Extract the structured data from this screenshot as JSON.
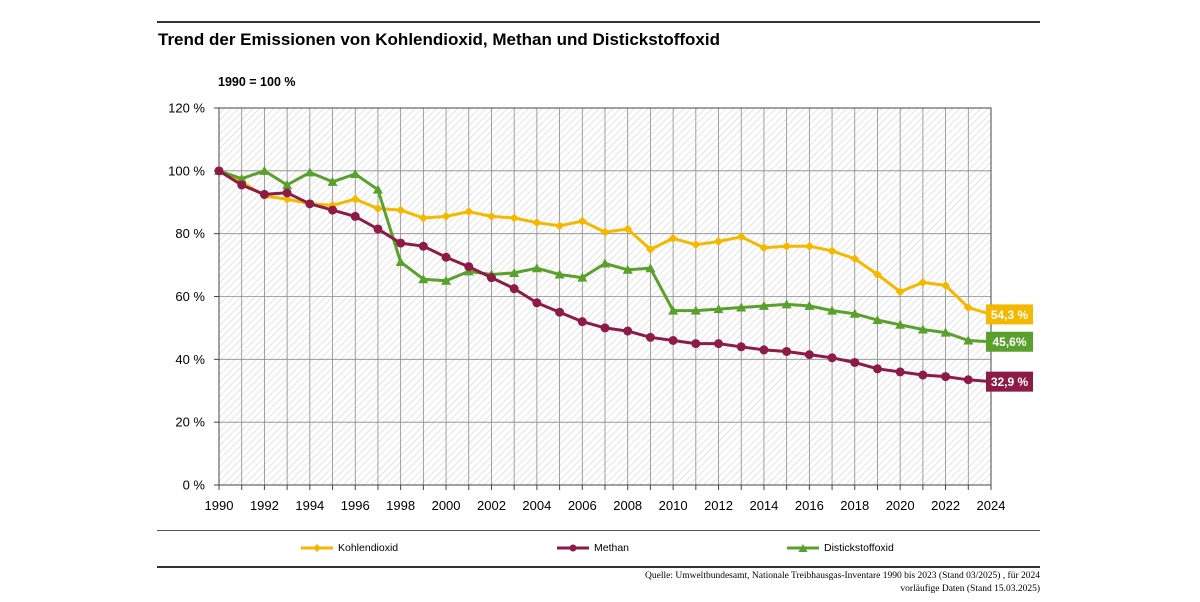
{
  "title": "Trend der Emissionen von Kohlendioxid, Methan und Distickstoffoxid",
  "chart_data": {
    "type": "line",
    "title": "Trend der Emissionen von Kohlendioxid, Methan und Distickstoffoxid",
    "unit_label": "1990 = 100 %",
    "x": [
      1990,
      1991,
      1992,
      1993,
      1994,
      1995,
      1996,
      1997,
      1998,
      1999,
      2000,
      2001,
      2002,
      2003,
      2004,
      2005,
      2006,
      2007,
      2008,
      2009,
      2010,
      2011,
      2012,
      2013,
      2014,
      2015,
      2016,
      2017,
      2018,
      2019,
      2020,
      2021,
      2022,
      2023,
      2024
    ],
    "x_tick_labels": [
      "1990",
      "1992",
      "1994",
      "1996",
      "1998",
      "2000",
      "2002",
      "2004",
      "2006",
      "2008",
      "2010",
      "2012",
      "2014",
      "2016",
      "2018",
      "2020",
      "2022",
      "2024"
    ],
    "ylim": [
      0,
      120
    ],
    "y_tick_labels": [
      "0 %",
      "20 %",
      "40 %",
      "60 %",
      "80 %",
      "100 %",
      "120 %"
    ],
    "grid": true,
    "legend_position": "bottom",
    "series": [
      {
        "name": "Kohlendioxid",
        "color": "#f5b800",
        "marker": "diamond",
        "values": [
          100,
          96.5,
          92,
          91,
          89.5,
          89,
          91,
          88,
          87.5,
          85,
          85.5,
          87,
          85.5,
          85,
          83.5,
          82.5,
          84,
          80.5,
          81.5,
          75,
          78.5,
          76.5,
          77.5,
          79,
          75.5,
          76,
          76,
          74.5,
          72,
          67,
          61.5,
          64.5,
          63.5,
          56.5,
          54.3
        ],
        "end_label": "54,3 %"
      },
      {
        "name": "Methan",
        "color": "#8c1b46",
        "marker": "circle",
        "values": [
          100,
          95.5,
          92.5,
          93,
          89.5,
          87.5,
          85.5,
          81.5,
          77,
          76,
          72.5,
          69.5,
          66,
          62.5,
          58,
          55,
          52,
          50,
          49,
          47,
          46,
          45,
          45,
          44,
          43,
          42.5,
          41.5,
          40.5,
          39,
          37,
          36,
          35,
          34.5,
          33.5,
          32.9
        ],
        "end_label": "32,9 %"
      },
      {
        "name": "Distickstoffoxid",
        "color": "#5aa02c",
        "marker": "triangle",
        "values": [
          100,
          97.5,
          100,
          95.5,
          99.5,
          96.5,
          99,
          94,
          71,
          65.5,
          65,
          68,
          67,
          67.5,
          69,
          67,
          66,
          70.5,
          68.5,
          69,
          55.5,
          55.5,
          56,
          56.5,
          57,
          57.5,
          57,
          55.5,
          54.5,
          52.5,
          51,
          49.5,
          48.5,
          46,
          45.6
        ],
        "end_label": "45,6%"
      }
    ]
  },
  "source": {
    "line1": "Quelle: Umweltbundesamt, Nationale Treibhausgas-Inventare 1990 bis 2023 (Stand 03/2025) , für 2024",
    "line2": "vorläufige Daten (Stand 15.03.2025)"
  }
}
